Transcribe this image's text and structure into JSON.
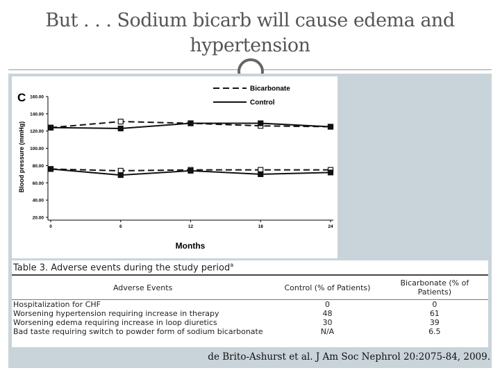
{
  "header": {
    "title": "But . . . Sodium bicarb will cause edema and hypertension"
  },
  "chart_data": {
    "type": "line",
    "panel": "C",
    "ylabel": "Blood pressure (mmHg)",
    "xlabel": "Months",
    "x": [
      0,
      6,
      12,
      18,
      24
    ],
    "xlim": [
      0,
      24
    ],
    "xticks": [
      0,
      6,
      12,
      18,
      24
    ],
    "ylim": [
      20,
      160
    ],
    "yticks": [
      {
        "value": 20,
        "label": "20.00"
      },
      {
        "value": 40,
        "label": "40.00"
      },
      {
        "value": 60,
        "label": "60.00"
      },
      {
        "value": 80,
        "label": "80.00"
      },
      {
        "value": 100,
        "label": "100.00"
      },
      {
        "value": 120,
        "label": "120.00"
      },
      {
        "value": 140,
        "label": "140.00"
      },
      {
        "value": 160,
        "label": "160.00"
      }
    ],
    "series": [
      {
        "name": "Bicarbonate",
        "color": "#111111",
        "dashed": true,
        "lines": [
          [
            124,
            131,
            129,
            126,
            125
          ],
          [
            76,
            74,
            75,
            75,
            75
          ]
        ]
      },
      {
        "name": "Control",
        "color": "#111111",
        "dashed": false,
        "lines": [
          [
            124,
            123,
            129,
            129,
            125
          ],
          [
            76,
            69,
            74,
            70,
            72
          ]
        ]
      }
    ]
  },
  "table": {
    "title": "Table 3.  Adverse events during the study period",
    "title_mark": "a",
    "columns": [
      "Adverse Events",
      "Control (% of Patients)",
      "Bicarbonate (% of Patients)"
    ],
    "rows": [
      [
        "Hospitalization for CHF",
        0,
        0
      ],
      [
        "Worsening hypertension requiring increase in therapy",
        48,
        61
      ],
      [
        "Worsening edema requiring increase in loop diuretics",
        30,
        39
      ],
      [
        "Bad taste requiring switch to powder form of sodium bicarbonate",
        "N/A",
        6.5
      ]
    ]
  },
  "footer": {
    "citation": "de Brito-Ashurst et al. J Am Soc Nephrol 20:2075-84, 2009."
  }
}
